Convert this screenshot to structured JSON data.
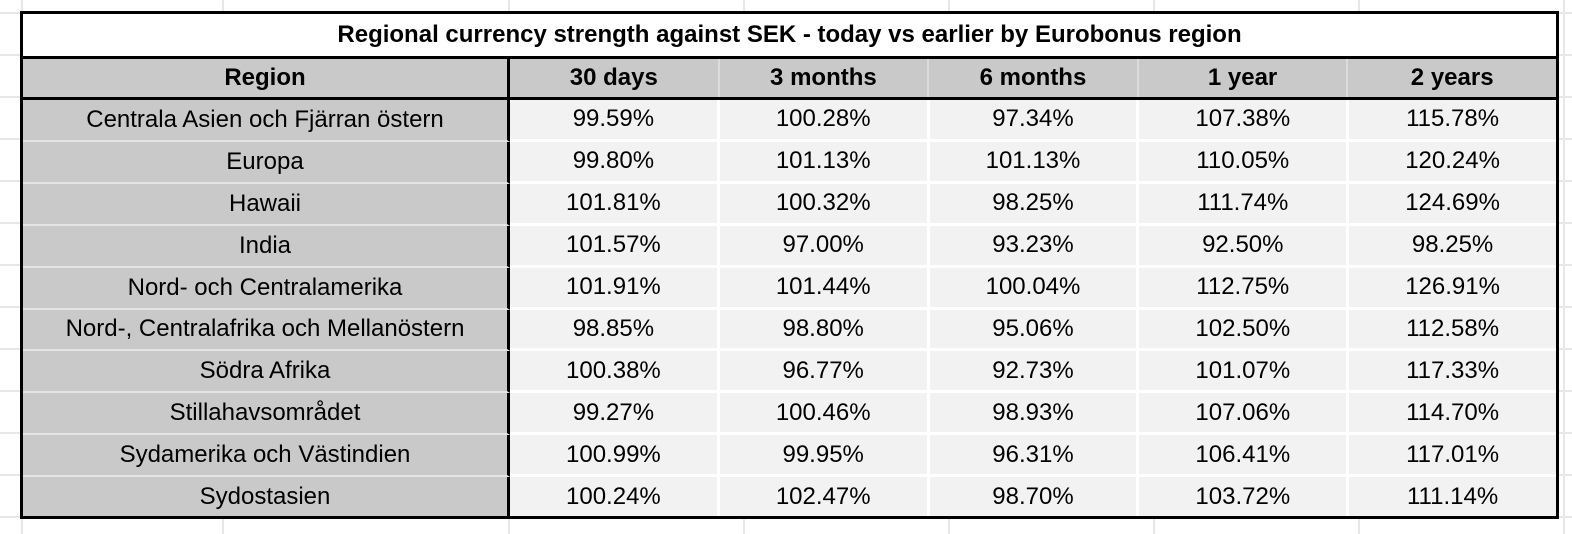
{
  "table": {
    "title": "Regional currency strength against SEK - today vs earlier by Eurobonus region",
    "columns": [
      "Region",
      "30 days",
      "3 months",
      "6 months",
      "1 year",
      "2 years"
    ],
    "rows": [
      {
        "region": "Centrala Asien och Fjärran östern",
        "values": [
          "99.59%",
          "100.28%",
          "97.34%",
          "107.38%",
          "115.78%"
        ]
      },
      {
        "region": "Europa",
        "values": [
          "99.80%",
          "101.13%",
          "101.13%",
          "110.05%",
          "120.24%"
        ]
      },
      {
        "region": "Hawaii",
        "values": [
          "101.81%",
          "100.32%",
          "98.25%",
          "111.74%",
          "124.69%"
        ]
      },
      {
        "region": "India",
        "values": [
          "101.57%",
          "97.00%",
          "93.23%",
          "92.50%",
          "98.25%"
        ]
      },
      {
        "region": "Nord- och Centralamerika",
        "values": [
          "101.91%",
          "101.44%",
          "100.04%",
          "112.75%",
          "126.91%"
        ]
      },
      {
        "region": "Nord-, Centralafrika och Mellanöstern",
        "values": [
          "98.85%",
          "98.80%",
          "95.06%",
          "102.50%",
          "112.58%"
        ]
      },
      {
        "region": "Södra Afrika",
        "values": [
          "100.38%",
          "96.77%",
          "92.73%",
          "101.07%",
          "117.33%"
        ]
      },
      {
        "region": "Stillahavsområdet",
        "values": [
          "99.27%",
          "100.46%",
          "98.93%",
          "107.06%",
          "114.70%"
        ]
      },
      {
        "region": "Sydamerika och Västindien",
        "values": [
          "100.99%",
          "99.95%",
          "96.31%",
          "106.41%",
          "117.01%"
        ]
      },
      {
        "region": "Sydostasien",
        "values": [
          "100.24%",
          "102.47%",
          "98.70%",
          "103.72%",
          "111.14%"
        ]
      }
    ]
  },
  "chart_data": {
    "type": "table",
    "title": "Regional currency strength against SEK - today vs earlier by Eurobonus region",
    "categories": [
      "Centrala Asien och Fjärran östern",
      "Europa",
      "Hawaii",
      "India",
      "Nord- och Centralamerika",
      "Nord-, Centralafrika och Mellanöstern",
      "Södra Afrika",
      "Stillahavsområdet",
      "Sydamerika och Västindien",
      "Sydostasien"
    ],
    "series": [
      {
        "name": "30 days",
        "values": [
          99.59,
          99.8,
          101.81,
          101.57,
          101.91,
          98.85,
          100.38,
          99.27,
          100.99,
          100.24
        ]
      },
      {
        "name": "3 months",
        "values": [
          100.28,
          101.13,
          100.32,
          97.0,
          101.44,
          98.8,
          96.77,
          100.46,
          99.95,
          102.47
        ]
      },
      {
        "name": "6 months",
        "values": [
          97.34,
          101.13,
          98.25,
          93.23,
          100.04,
          95.06,
          92.73,
          98.93,
          96.31,
          98.7
        ]
      },
      {
        "name": "1 year",
        "values": [
          107.38,
          110.05,
          111.74,
          92.5,
          112.75,
          102.5,
          101.07,
          107.06,
          106.41,
          103.72
        ]
      },
      {
        "name": "2 years",
        "values": [
          115.78,
          120.24,
          124.69,
          98.25,
          126.91,
          112.58,
          117.33,
          114.7,
          117.01,
          111.14
        ]
      }
    ],
    "unit": "%"
  },
  "colors": {
    "table_border": "#000000",
    "header_bg": "#c9c9c9",
    "region_bg": "#c9c9c9",
    "value_bg": "#f2f2f2",
    "title_bg": "#ffffff",
    "gridline": "#e7e7e7",
    "region_divider": "#e4e4e4",
    "value_divider": "#ffffff",
    "header_divider": "#dcdcdc",
    "text": "#000000"
  }
}
